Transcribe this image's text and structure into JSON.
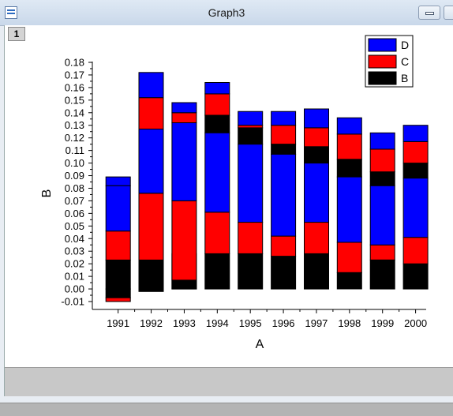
{
  "window": {
    "title": "Graph3",
    "layer_tab": "1"
  },
  "colors": {
    "B": "#000000",
    "C": "#ff0000",
    "D": "#0000ff"
  },
  "chart_data": {
    "type": "floating stacked bar",
    "xlabel": "A",
    "ylabel": "B",
    "ylim": [
      -0.01,
      0.18
    ],
    "yticks": [
      "-0.01",
      "0.00",
      "0.01",
      "0.02",
      "0.03",
      "0.04",
      "0.05",
      "0.06",
      "0.07",
      "0.08",
      "0.09",
      "0.10",
      "0.11",
      "0.12",
      "0.13",
      "0.14",
      "0.15",
      "0.16",
      "0.17",
      "0.18"
    ],
    "categories": [
      "1991",
      "1992",
      "1993",
      "1994",
      "1995",
      "1996",
      "1997",
      "1998",
      "1999",
      "2000"
    ],
    "legend": {
      "position": "top-right",
      "entries": [
        "D",
        "C",
        "B"
      ]
    },
    "series": [
      {
        "name": "B",
        "color": "#000000",
        "ranges": [
          [
            -0.007,
            0.0
          ],
          [
            -0.002,
            0.0
          ],
          [
            0.028,
            0.0
          ],
          [
            0.124,
            0.138
          ],
          [
            0.115,
            0.128
          ],
          [
            0.107,
            0.115
          ],
          [
            0.1,
            0.113
          ],
          [
            0.089,
            0.103
          ],
          [
            0.082,
            0.093
          ],
          [
            0.088,
            0.1
          ]
        ]
      },
      {
        "name": "C",
        "color": "#ff0000",
        "ranges": [
          [
            -0.007,
            -0.01
          ],
          [
            0.127,
            0.152
          ],
          [
            0.132,
            0.14
          ],
          [
            0.138,
            0.155
          ],
          [
            0.128,
            0.13
          ],
          [
            0.115,
            0.13
          ],
          [
            0.113,
            0.128
          ],
          [
            0.103,
            0.123
          ],
          [
            0.093,
            0.111
          ],
          [
            0.1,
            0.117
          ]
        ]
      },
      {
        "name": "D",
        "color": "#0000ff",
        "ranges": [
          [
            0.082,
            0.089
          ],
          [
            0.152,
            0.172
          ],
          [
            0.14,
            0.148
          ],
          [
            0.155,
            0.164
          ],
          [
            0.13,
            0.141
          ],
          [
            0.13,
            0.141
          ],
          [
            0.128,
            0.143
          ],
          [
            0.123,
            0.136
          ],
          [
            0.111,
            0.124
          ],
          [
            0.117,
            0.13
          ]
        ]
      },
      {
        "name": "B",
        "color": "#000000",
        "ranges": [
          [
            0.0,
            0.023
          ],
          [
            0.0,
            0.023
          ],
          [
            0.0,
            0.007
          ],
          [
            0.0,
            0.028
          ],
          [
            0.0,
            0.028
          ],
          [
            0.0,
            0.026
          ],
          [
            0.0,
            0.028
          ],
          [
            0.0,
            0.013
          ],
          [
            0.0,
            0.023
          ],
          [
            0.0,
            0.02
          ]
        ]
      },
      {
        "name": "C",
        "color": "#ff0000",
        "ranges": [
          [
            0.023,
            0.046
          ],
          [
            0.023,
            0.076
          ],
          [
            0.007,
            0.07
          ],
          [
            0.028,
            0.061
          ],
          [
            0.028,
            0.053
          ],
          [
            0.026,
            0.042
          ],
          [
            0.028,
            0.053
          ],
          [
            0.013,
            0.037
          ],
          [
            0.023,
            0.035
          ],
          [
            0.02,
            0.041
          ]
        ]
      },
      {
        "name": "D",
        "color": "#0000ff",
        "ranges": [
          [
            0.046,
            0.082
          ],
          [
            0.076,
            0.127
          ],
          [
            0.07,
            0.132
          ],
          [
            0.061,
            0.124
          ],
          [
            0.053,
            0.115
          ],
          [
            0.042,
            0.107
          ],
          [
            0.053,
            0.1
          ],
          [
            0.037,
            0.089
          ],
          [
            0.035,
            0.082
          ],
          [
            0.041,
            0.088
          ]
        ]
      }
    ]
  }
}
